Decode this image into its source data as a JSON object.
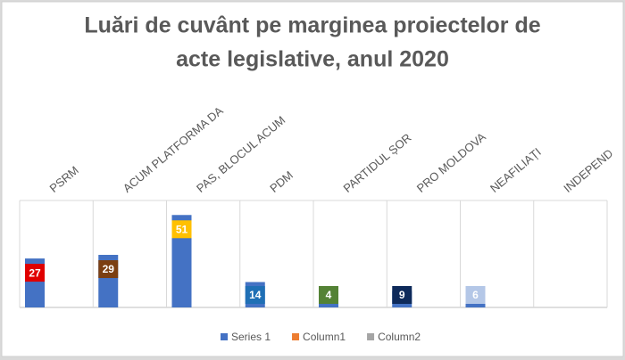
{
  "chart_data": {
    "type": "bar",
    "title": [
      "Luări de cuvânt pe marginea proiectelor de",
      "acte legislative, anul 2020"
    ],
    "categories": [
      "PSRM",
      "ACUM PLATFORMA DA",
      "PAS, BLOCUL ACUM",
      "PDM",
      "PARTIDUL ȘOR",
      "PRO MOLDOVA",
      "NEAFILIAȚI",
      "INDEPENDENȚI"
    ],
    "series": [
      {
        "name": "Series 1",
        "color": "#4472c4",
        "values": [
          27,
          29,
          51,
          14,
          4,
          9,
          6,
          0
        ],
        "label_colors": [
          "#e00000",
          "#7b3f12",
          "#ffc000",
          "#1f6fb5",
          "#548235",
          "#0e2a5a",
          "#b4c7e7",
          null
        ]
      },
      {
        "name": "Column1",
        "color": "#ed7d31",
        "values": [
          null,
          null,
          null,
          null,
          null,
          null,
          null,
          null
        ]
      },
      {
        "name": "Column2",
        "color": "#a5a5a5",
        "values": [
          null,
          null,
          null,
          null,
          null,
          null,
          null,
          null
        ]
      }
    ],
    "ylim": [
      0,
      59
    ],
    "legend": "bottom"
  }
}
